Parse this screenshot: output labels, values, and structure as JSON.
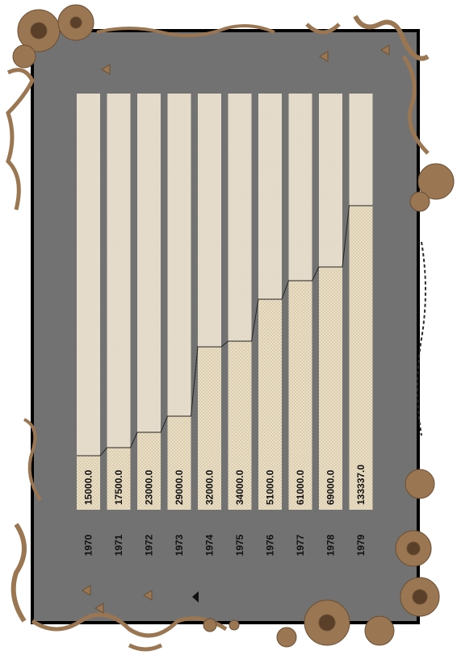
{
  "chart_data": {
    "type": "bar",
    "orientation": "vertical-bars-rotated-labels",
    "categories": [
      "1970",
      "1971",
      "1972",
      "1973",
      "1974",
      "1975",
      "1976",
      "1977",
      "1978",
      "1979"
    ],
    "values": [
      15000.0,
      17500.0,
      23000.0,
      29000.0,
      32000.0,
      34000.0,
      51000.0,
      61000.0,
      69000.0,
      133337.0
    ],
    "value_labels": [
      "15000.0",
      "17500.0",
      "23000.0",
      "29000.0",
      "32000.0",
      "34000.0",
      "51000.0",
      "61000.0",
      "69000.0",
      "133337.0"
    ],
    "title": "",
    "xlabel": "",
    "ylabel": "",
    "grid": false,
    "legend": "none",
    "scale": "piecewise"
  },
  "colors": {
    "background": "#727272",
    "frame_border": "#000000",
    "bar_track": "#e6dccb",
    "bar_fill": "#ece0c7",
    "bar_fill_texture": "#d2c3a6",
    "connector_line": "#222222",
    "decoration": "#9a7652",
    "text": "#111111"
  }
}
